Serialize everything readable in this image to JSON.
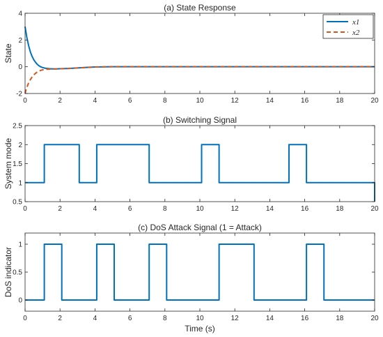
{
  "colors": {
    "series1": "#0072BD",
    "series2": "#D95319",
    "axis": "#262626",
    "text": "#262626"
  },
  "chart_data": [
    {
      "type": "line",
      "title": "(a) State Response",
      "xlabel": "",
      "ylabel": "State",
      "xlim": [
        0,
        20
      ],
      "ylim": [
        -2,
        4
      ],
      "xticks": [
        0,
        2,
        4,
        6,
        8,
        10,
        12,
        14,
        16,
        18,
        20
      ],
      "yticks": [
        -2,
        0,
        2,
        4
      ],
      "grid": false,
      "legend": {
        "placement": "top-right",
        "entries": [
          "x1",
          "x2"
        ]
      },
      "series": [
        {
          "name": "x1",
          "style": "solid",
          "x": [
            0,
            0.05,
            0.1,
            0.2,
            0.3,
            0.4,
            0.5,
            0.6,
            0.7,
            0.8,
            0.9,
            1.0,
            1.2,
            1.4,
            1.6,
            1.8,
            2.0,
            2.5,
            3.0,
            3.5,
            4.0,
            5.0,
            6.0,
            8.0,
            10.0,
            12.0,
            14.0,
            16.0,
            18.0,
            20.0
          ],
          "y": [
            3.0,
            2.6,
            2.2,
            1.6,
            1.12,
            0.78,
            0.52,
            0.33,
            0.18,
            0.07,
            -0.01,
            -0.06,
            -0.12,
            -0.15,
            -0.16,
            -0.16,
            -0.15,
            -0.13,
            -0.09,
            -0.05,
            -0.02,
            0.0,
            0.0,
            0.0,
            0.0,
            0.0,
            0.0,
            0.0,
            0.0,
            0.0
          ]
        },
        {
          "name": "x2",
          "style": "dashed",
          "x": [
            0,
            0.05,
            0.1,
            0.2,
            0.3,
            0.4,
            0.5,
            0.6,
            0.7,
            0.8,
            0.9,
            1.0,
            1.2,
            1.4,
            1.6,
            1.8,
            2.0,
            2.5,
            3.0,
            3.5,
            4.0,
            5.0,
            6.0,
            8.0,
            10.0,
            12.0,
            14.0,
            16.0,
            18.0,
            20.0
          ],
          "y": [
            -2.0,
            -1.75,
            -1.55,
            -1.22,
            -0.97,
            -0.77,
            -0.61,
            -0.49,
            -0.39,
            -0.32,
            -0.27,
            -0.23,
            -0.19,
            -0.18,
            -0.17,
            -0.16,
            -0.15,
            -0.13,
            -0.09,
            -0.05,
            -0.02,
            0.0,
            0.0,
            0.0,
            0.0,
            0.0,
            0.0,
            0.0,
            0.0,
            0.0
          ]
        }
      ]
    },
    {
      "type": "line",
      "title": "(b) Switching Signal",
      "xlabel": "",
      "ylabel": "System mode",
      "xlim": [
        0,
        20
      ],
      "ylim": [
        0.5,
        2.5
      ],
      "xticks": [
        0,
        2,
        4,
        6,
        8,
        10,
        12,
        14,
        16,
        18,
        20
      ],
      "yticks": [
        0.5,
        1,
        1.5,
        2,
        2.5
      ],
      "grid": false,
      "series": [
        {
          "style": "step",
          "x": [
            0,
            1.1,
            1.1,
            3.1,
            3.1,
            4.1,
            4.1,
            7.1,
            7.1,
            10.1,
            10.1,
            11.1,
            11.1,
            15.1,
            15.1,
            16.1,
            16.1,
            20,
            20
          ],
          "y": [
            1,
            1,
            2,
            2,
            1,
            1,
            2,
            2,
            1,
            1,
            2,
            2,
            1,
            1,
            2,
            2,
            1,
            1,
            0.5
          ]
        }
      ]
    },
    {
      "type": "line",
      "title": "(c) DoS Attack Signal (1 = Attack)",
      "xlabel": "Time (s)",
      "ylabel": "DoS indicator",
      "xlim": [
        0,
        20
      ],
      "ylim": [
        -0.2,
        1.2
      ],
      "xticks": [
        0,
        2,
        4,
        6,
        8,
        10,
        12,
        14,
        16,
        18,
        20
      ],
      "yticks": [
        0,
        0.5,
        1
      ],
      "grid": false,
      "series": [
        {
          "style": "step",
          "x": [
            0,
            1.1,
            1.1,
            2.1,
            2.1,
            4.1,
            4.1,
            5.1,
            5.1,
            7.1,
            7.1,
            8.1,
            8.1,
            11.1,
            11.1,
            13.1,
            13.1,
            16.1,
            16.1,
            17.1,
            17.1,
            20
          ],
          "y": [
            0,
            0,
            1,
            1,
            0,
            0,
            1,
            1,
            0,
            0,
            1,
            1,
            0,
            0,
            1,
            1,
            0,
            0,
            1,
            1,
            0,
            0
          ]
        }
      ]
    }
  ]
}
